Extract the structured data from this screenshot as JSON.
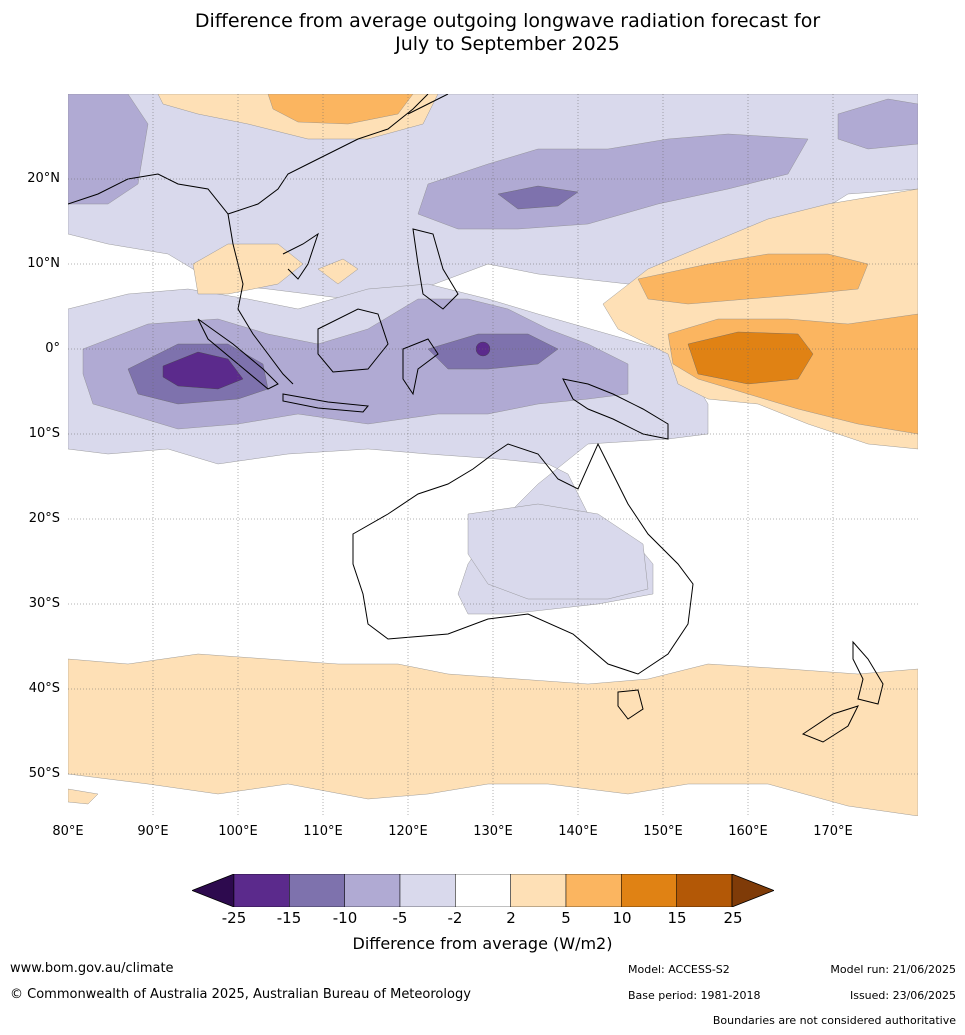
{
  "title_line1": "Difference from average outgoing longwave radiation forecast for",
  "title_line2": "July to September 2025",
  "lat_labels": [
    "20°N",
    "10°N",
    "0°",
    "10°S",
    "20°S",
    "30°S",
    "40°S",
    "50°S"
  ],
  "lon_labels": [
    "80°E",
    "90°E",
    "100°E",
    "110°E",
    "120°E",
    "130°E",
    "140°E",
    "150°E",
    "160°E",
    "170°E"
  ],
  "colorbar": {
    "ticks": [
      "-25",
      "-15",
      "-10",
      "-5",
      "-2",
      "2",
      "5",
      "10",
      "15",
      "25"
    ],
    "colors": [
      "#2d0a4e",
      "#5b2a8c",
      "#7e72ad",
      "#b0aad3",
      "#d9d9ec",
      "#ffffff",
      "#fee0b6",
      "#fbb560",
      "#e08214",
      "#b35806",
      "#7f3b08"
    ],
    "label": "Difference from average (W/m2)"
  },
  "footer": {
    "website": "www.bom.gov.au/climate",
    "copyright": "© Commonwealth of Australia 2025, Australian Bureau of Meteorology",
    "model": "Model: ACCESS-S2",
    "base_period": "Base period: 1981-2018",
    "model_run": "Model run: 21/06/2025",
    "issued": "Issued: 23/06/2025",
    "disclaimer": "Boundaries are not considered authoritative"
  }
}
